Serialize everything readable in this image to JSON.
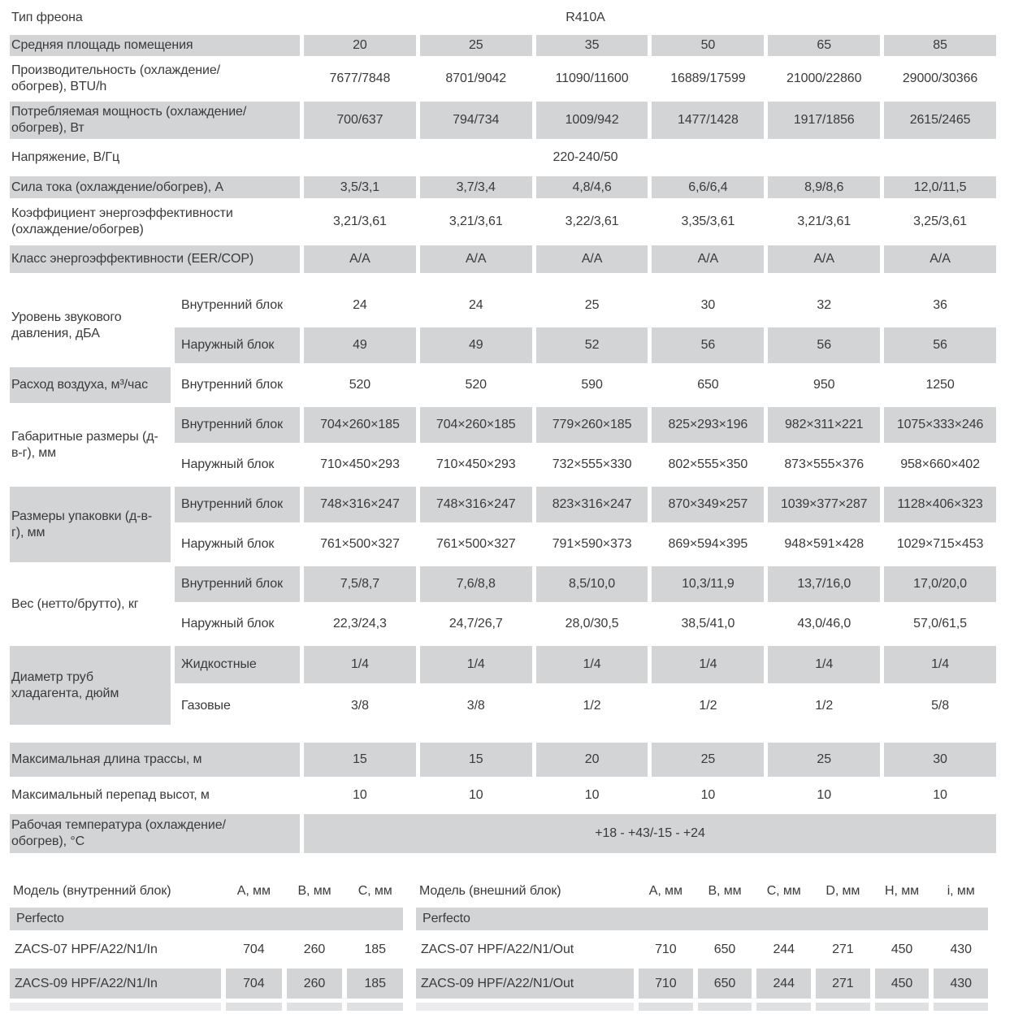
{
  "colors": {
    "shaded_cell": "#d3d4d6",
    "text": "#3a3a3c",
    "page_bg": "#ffffff"
  },
  "spec_table": {
    "column_count": 6,
    "rows": [
      {
        "key": "freon",
        "type": "merged",
        "label": "Тип фреона",
        "value": "R410A",
        "wide": false,
        "shaded": false
      },
      {
        "key": "area",
        "type": "simple",
        "label": "Средняя площадь помещения",
        "values": [
          "20",
          "25",
          "35",
          "50",
          "65",
          "85"
        ],
        "shaded": true
      },
      {
        "key": "capacity",
        "type": "simple",
        "label": "Производительность (охлаждение/обогрев), BTU/h",
        "values": [
          "7677/7848",
          "8701/9042",
          "11090/11600",
          "16889/17599",
          "21000/22860",
          "29000/30366"
        ],
        "shaded": false
      },
      {
        "key": "power",
        "type": "simple",
        "label": "Потребляемая мощность (охлаждение/обогрев), Вт",
        "values": [
          "700/637",
          "794/734",
          "1009/942",
          "1477/1428",
          "1917/1856",
          "2615/2465"
        ],
        "shaded": true
      },
      {
        "key": "voltage",
        "type": "merged",
        "label": "Напряжение, В/Гц",
        "value": "220-240/50",
        "wide": false,
        "shaded": false
      },
      {
        "key": "current",
        "type": "simple",
        "label": "Сила тока (охлаждение/обогрев), А",
        "values": [
          "3,5/3,1",
          "3,7/3,4",
          "4,8/4,6",
          "6,6/6,4",
          "8,9/8,6",
          "12,0/11,5"
        ],
        "shaded": true
      },
      {
        "key": "eer",
        "type": "simple",
        "label": "Коэффициент энергоэффективности (охлаждение/обогрев)",
        "values": [
          "3,21/3,61",
          "3,21/3,61",
          "3,22/3,61",
          "3,35/3,61",
          "3,21/3,61",
          "3,25/3,61"
        ],
        "shaded": false
      },
      {
        "key": "class",
        "type": "simple",
        "label": "Класс энергоэффективности (EER/COP)",
        "values": [
          "А/А",
          "А/А",
          "А/А",
          "А/А",
          "А/А",
          "А/А"
        ],
        "shaded": true
      },
      {
        "key": "gap1",
        "type": "spacer"
      },
      {
        "key": "sound",
        "type": "group",
        "label": "Уровень звукового давления, дБА",
        "label_shaded": false,
        "subrows": [
          {
            "sublabel": "Внутренний блок",
            "values": [
              "24",
              "24",
              "25",
              "30",
              "32",
              "36"
            ],
            "shaded": false
          },
          {
            "sublabel": "Наружный блок",
            "values": [
              "49",
              "49",
              "52",
              "56",
              "56",
              "56"
            ],
            "shaded": true
          }
        ]
      },
      {
        "key": "airflow",
        "type": "group",
        "label": "Расход воздуха, м³/час",
        "label_shaded": true,
        "subrows": [
          {
            "sublabel": "Внутренний блок",
            "values": [
              "520",
              "520",
              "590",
              "650",
              "950",
              "1250"
            ],
            "shaded": false
          }
        ]
      },
      {
        "key": "dims",
        "type": "group",
        "label": "Габаритные размеры (д-в-г), мм",
        "label_shaded": false,
        "subrows": [
          {
            "sublabel": "Внутренний блок",
            "values": [
              "704×260×185",
              "704×260×185",
              "779×260×185",
              "825×293×196",
              "982×311×221",
              "1075×333×246"
            ],
            "shaded": true
          },
          {
            "sublabel": "Наружный блок",
            "values": [
              "710×450×293",
              "710×450×293",
              "732×555×330",
              "802×555×350",
              "873×555×376",
              "958×660×402"
            ],
            "shaded": false
          }
        ]
      },
      {
        "key": "pack",
        "type": "group",
        "label": "Размеры упаковки (д-в-г), мм",
        "label_shaded": true,
        "subrows": [
          {
            "sublabel": "Внутренний блок",
            "values": [
              "748×316×247",
              "748×316×247",
              "823×316×247",
              "870×349×257",
              "1039×377×287",
              "1128×406×323"
            ],
            "shaded": true
          },
          {
            "sublabel": "Наружный блок",
            "values": [
              "761×500×327",
              "761×500×327",
              "791×590×373",
              "869×594×395",
              "948×591×428",
              "1029×715×453"
            ],
            "shaded": false
          }
        ]
      },
      {
        "key": "weight",
        "type": "group",
        "label": "Вес (нетто/брутто), кг",
        "label_shaded": false,
        "subrows": [
          {
            "sublabel": "Внутренний блок",
            "values": [
              "7,5/8,7",
              "7,6/8,8",
              "8,5/10,0",
              "10,3/11,9",
              "13,7/16,0",
              "17,0/20,0"
            ],
            "shaded": true
          },
          {
            "sublabel": "Наружный блок",
            "values": [
              "22,3/24,3",
              "24,7/26,7",
              "28,0/30,5",
              "38,5/41,0",
              "43,0/46,0",
              "57,0/61,5"
            ],
            "shaded": false
          }
        ]
      },
      {
        "key": "pipes",
        "type": "group",
        "label": "Диаметр труб хладагента, дюйм",
        "label_shaded": true,
        "subrows": [
          {
            "sublabel": "Жидкостные",
            "values": [
              "1/4",
              "1/4",
              "1/4",
              "1/4",
              "1/4",
              "1/4"
            ],
            "shaded": true
          },
          {
            "sublabel": "Газовые",
            "values": [
              "3/8",
              "3/8",
              "1/2",
              "1/2",
              "1/2",
              "5/8"
            ],
            "shaded": false
          }
        ]
      },
      {
        "key": "gap2",
        "type": "spacer"
      },
      {
        "key": "maxlen",
        "type": "simple",
        "label": "Максимальная длина трассы, м",
        "values": [
          "15",
          "15",
          "20",
          "25",
          "25",
          "30"
        ],
        "shaded": true
      },
      {
        "key": "maxdrop",
        "type": "simple",
        "label": "Максимальный перепад высот, м",
        "values": [
          "10",
          "10",
          "10",
          "10",
          "10",
          "10"
        ],
        "shaded": false
      },
      {
        "key": "temp",
        "type": "merged",
        "label": "Рабочая температура (охлаждение/обогрев), °С",
        "value": "+18 - +43/-15 - +24",
        "wide": true,
        "shaded": true
      }
    ]
  },
  "indoor_table": {
    "title": "Модель (внутренний блок)",
    "columns": [
      "А, мм",
      "В, мм",
      "С, мм"
    ],
    "series": "Perfecto",
    "rows": [
      {
        "model": "ZACS-07 HPF/A22/N1/In",
        "values": [
          "704",
          "260",
          "185"
        ],
        "shaded": false
      },
      {
        "model": "ZACS-09 HPF/A22/N1/In",
        "values": [
          "704",
          "260",
          "185"
        ],
        "shaded": true
      }
    ]
  },
  "outdoor_table": {
    "title": "Модель (внешний блок)",
    "columns": [
      "А, мм",
      "В, мм",
      "С, мм",
      "D, мм",
      "Н, мм",
      "i, мм"
    ],
    "series": "Perfecto",
    "rows": [
      {
        "model": "ZACS-07 HPF/A22/N1/Out",
        "values": [
          "710",
          "650",
          "244",
          "271",
          "450",
          "430"
        ],
        "shaded": false
      },
      {
        "model": "ZACS-09 HPF/A22/N1/Out",
        "values": [
          "710",
          "650",
          "244",
          "271",
          "450",
          "430"
        ],
        "shaded": true
      }
    ]
  }
}
